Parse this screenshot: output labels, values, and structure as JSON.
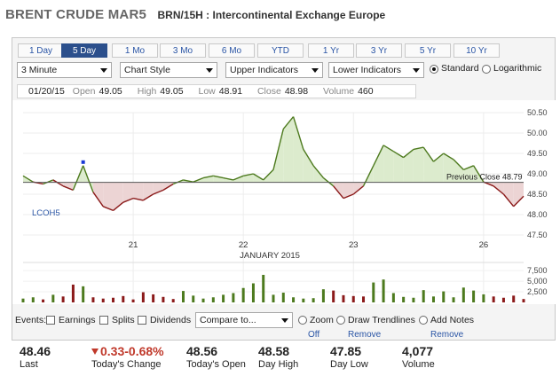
{
  "header": {
    "title": "BRENT CRUDE MAR5",
    "subtitle": "BRN/15H : Intercontinental Exchange Europe"
  },
  "range_tabs": [
    "1 Day",
    "5 Day",
    "1 Mo",
    "3 Mo",
    "6 Mo",
    "YTD",
    "1 Yr",
    "3 Yr",
    "5 Yr",
    "10 Yr"
  ],
  "active_range": "5 Day",
  "controls": {
    "interval": "3 Minute",
    "style": "Chart Style",
    "upper": "Upper Indicators",
    "lower": "Lower Indicators",
    "scale_standard": "Standard",
    "scale_log": "Logarithmic",
    "scale_selected": "Standard"
  },
  "ohlc": {
    "date": "01/20/15",
    "open_label": "Open",
    "open": "49.05",
    "high_label": "High",
    "high": "49.05",
    "low_label": "Low",
    "low": "48.91",
    "close_label": "Close",
    "close": "48.98",
    "volume_label": "Volume",
    "volume": "460"
  },
  "chart_data": {
    "type": "line",
    "price_ticks": [
      "50.50",
      "50.00",
      "49.50",
      "49.00",
      "48.50",
      "48.00",
      "47.50"
    ],
    "volume_ticks": [
      "7,500",
      "5,000",
      "2,500"
    ],
    "x_ticks": [
      "21",
      "22",
      "23",
      "26"
    ],
    "xlabel": "JANUARY 2015",
    "series_label": "LCOH5",
    "previous_close_label": "Previous Close 48.79",
    "previous_close": 48.79,
    "ylim": [
      47.5,
      50.5
    ],
    "colors": {
      "above": "#4d7a1e",
      "below": "#8b1a1a",
      "fill_above": "#dcebcd",
      "fill_below": "#ecd4d4"
    },
    "x": [
      0,
      2,
      4,
      6,
      8,
      10,
      12,
      14,
      16,
      18,
      20,
      22,
      24,
      26,
      28,
      30,
      32,
      34,
      36,
      38,
      40,
      42,
      44,
      46,
      48,
      50,
      52,
      54,
      56,
      58,
      60,
      62,
      64,
      66,
      68,
      70,
      72,
      74,
      76,
      78,
      80,
      82,
      84,
      86,
      88,
      90,
      92,
      94,
      96,
      98,
      100
    ],
    "y": [
      48.95,
      48.8,
      48.75,
      48.85,
      48.7,
      48.6,
      49.2,
      48.55,
      48.2,
      48.1,
      48.3,
      48.4,
      48.35,
      48.5,
      48.6,
      48.75,
      48.85,
      48.8,
      48.9,
      48.95,
      48.9,
      48.85,
      48.95,
      49.0,
      48.85,
      49.1,
      50.1,
      50.4,
      49.6,
      49.2,
      48.9,
      48.7,
      48.4,
      48.5,
      48.7,
      49.2,
      49.7,
      49.55,
      49.4,
      49.6,
      49.65,
      49.3,
      49.5,
      49.35,
      49.1,
      49.2,
      48.8,
      48.7,
      48.5,
      48.2,
      48.45
    ],
    "volume": [
      900,
      1200,
      700,
      1800,
      1400,
      4200,
      3800,
      1200,
      900,
      1100,
      1500,
      700,
      2400,
      1900,
      1300,
      800,
      2700,
      1600,
      900,
      1200,
      1800,
      2200,
      3400,
      4500,
      6500,
      1800,
      2300,
      1200,
      900,
      1000,
      3100,
      2800,
      1700,
      1500,
      1400,
      4700,
      5400,
      2200,
      1300,
      1100,
      2900,
      1400,
      2600,
      1200,
      3500,
      2800,
      1900,
      1400,
      1100,
      1600,
      800
    ]
  },
  "events": {
    "label": "Events:",
    "earnings": "Earnings",
    "splits": "Splits",
    "dividends": "Dividends",
    "compare": "Compare to...",
    "zoom": "Zoom",
    "zoom_state": "Off",
    "trendlines": "Draw Trendlines",
    "trendlines_action": "Remove",
    "notes": "Add Notes",
    "notes_action": "Remove"
  },
  "stats": {
    "last": "48.46",
    "last_label": "Last",
    "change": "0.33-0.68%",
    "change_label": "Today's Change",
    "open": "48.56",
    "open_label": "Today's Open",
    "high": "48.58",
    "high_label": "Day High",
    "low": "47.85",
    "low_label": "Day Low",
    "volume": "4,077",
    "volume_label": "Volume"
  }
}
